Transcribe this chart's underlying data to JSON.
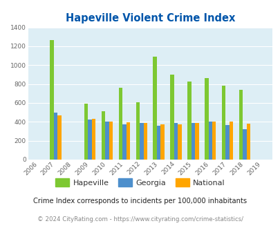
{
  "title": "Hapeville Violent Crime Index",
  "years": [
    "2006",
    "2007",
    "2008",
    "2009",
    "2010",
    "2011",
    "2012",
    "2013",
    "2014",
    "2015",
    "2016",
    "2017",
    "2018",
    "2019"
  ],
  "hapeville": [
    0,
    1265,
    0,
    590,
    515,
    760,
    610,
    1090,
    900,
    825,
    860,
    780,
    740,
    0
  ],
  "georgia": [
    0,
    495,
    0,
    425,
    405,
    375,
    385,
    360,
    385,
    385,
    400,
    365,
    320,
    0
  ],
  "national": [
    0,
    470,
    0,
    435,
    405,
    395,
    390,
    370,
    375,
    390,
    400,
    400,
    380,
    0
  ],
  "hapeville_color": "#7dc832",
  "georgia_color": "#4d8fcc",
  "national_color": "#ffa500",
  "bg_color": "#ddeef5",
  "title_color": "#0055aa",
  "subtitle": "Crime Index corresponds to incidents per 100,000 inhabitants",
  "footer": "© 2024 CityRating.com - https://www.cityrating.com/crime-statistics/",
  "ylim": [
    0,
    1400
  ],
  "yticks": [
    0,
    200,
    400,
    600,
    800,
    1000,
    1200,
    1400
  ]
}
